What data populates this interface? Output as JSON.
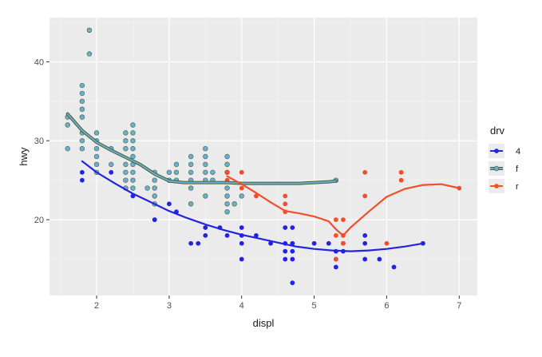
{
  "chart_data": {
    "type": "scatter",
    "xlabel": "displ",
    "ylabel": "hwy",
    "xlim": [
      1.35,
      7.25
    ],
    "ylim": [
      10.4,
      45.6
    ],
    "x_ticks": [
      2,
      3,
      4,
      5,
      6,
      7
    ],
    "y_ticks": [
      20,
      30,
      40
    ],
    "grid": true,
    "legend": {
      "title": "drv",
      "position": "right",
      "entries": [
        "4",
        "f",
        "r"
      ]
    },
    "series": [
      {
        "name": "4",
        "color": "#2323e0",
        "points": [
          [
            1.8,
            26
          ],
          [
            1.8,
            25
          ],
          [
            2.0,
            28
          ],
          [
            2.0,
            27
          ],
          [
            2.2,
            26
          ],
          [
            2.5,
            25
          ],
          [
            2.5,
            24
          ],
          [
            2.5,
            23
          ],
          [
            2.5,
            26
          ],
          [
            2.8,
            20
          ],
          [
            2.8,
            20
          ],
          [
            3.0,
            22
          ],
          [
            3.1,
            21
          ],
          [
            3.3,
            17
          ],
          [
            3.4,
            17
          ],
          [
            3.5,
            19
          ],
          [
            3.5,
            18
          ],
          [
            3.7,
            19
          ],
          [
            3.8,
            18
          ],
          [
            4.0,
            17
          ],
          [
            4.0,
            18
          ],
          [
            4.0,
            15
          ],
          [
            4.0,
            19
          ],
          [
            4.2,
            18
          ],
          [
            4.4,
            17
          ],
          [
            4.6,
            17
          ],
          [
            4.6,
            16
          ],
          [
            4.6,
            15
          ],
          [
            4.6,
            19
          ],
          [
            4.7,
            17
          ],
          [
            4.7,
            16
          ],
          [
            4.7,
            15
          ],
          [
            4.7,
            12
          ],
          [
            4.7,
            19
          ],
          [
            5.0,
            17
          ],
          [
            5.2,
            17
          ],
          [
            5.3,
            16
          ],
          [
            5.3,
            15
          ],
          [
            5.3,
            14
          ],
          [
            5.4,
            17
          ],
          [
            5.4,
            16
          ],
          [
            5.7,
            18
          ],
          [
            5.7,
            17
          ],
          [
            5.7,
            15
          ],
          [
            5.9,
            15
          ],
          [
            6.1,
            14
          ],
          [
            6.5,
            17
          ]
        ],
        "trend": [
          [
            1.8,
            27.4
          ],
          [
            2.0,
            26.0
          ],
          [
            2.25,
            24.6
          ],
          [
            2.5,
            23.3
          ],
          [
            2.75,
            22.2
          ],
          [
            3.0,
            21.1
          ],
          [
            3.25,
            20.2
          ],
          [
            3.5,
            19.4
          ],
          [
            3.75,
            18.7
          ],
          [
            4.0,
            18.1
          ],
          [
            4.25,
            17.6
          ],
          [
            4.5,
            17.1
          ],
          [
            4.75,
            16.6
          ],
          [
            5.0,
            16.3
          ],
          [
            5.25,
            16.1
          ],
          [
            5.5,
            16.0
          ],
          [
            5.75,
            16.1
          ],
          [
            6.0,
            16.3
          ],
          [
            6.25,
            16.6
          ],
          [
            6.5,
            17.0
          ]
        ]
      },
      {
        "name": "f",
        "color": "#6aaed0",
        "points": [
          [
            1.6,
            33
          ],
          [
            1.6,
            32
          ],
          [
            1.6,
            29
          ],
          [
            1.8,
            37
          ],
          [
            1.8,
            36
          ],
          [
            1.8,
            35
          ],
          [
            1.8,
            34
          ],
          [
            1.8,
            33
          ],
          [
            1.8,
            31
          ],
          [
            1.8,
            30
          ],
          [
            1.8,
            29
          ],
          [
            1.9,
            44
          ],
          [
            1.9,
            41
          ],
          [
            2.0,
            31
          ],
          [
            2.0,
            30
          ],
          [
            2.0,
            29
          ],
          [
            2.0,
            28
          ],
          [
            2.0,
            27
          ],
          [
            2.0,
            26
          ],
          [
            2.2,
            27
          ],
          [
            2.2,
            29
          ],
          [
            2.4,
            31
          ],
          [
            2.4,
            30
          ],
          [
            2.4,
            29
          ],
          [
            2.4,
            27
          ],
          [
            2.4,
            26
          ],
          [
            2.4,
            25
          ],
          [
            2.4,
            24
          ],
          [
            2.5,
            32
          ],
          [
            2.5,
            31
          ],
          [
            2.5,
            30
          ],
          [
            2.5,
            29
          ],
          [
            2.5,
            28
          ],
          [
            2.5,
            27
          ],
          [
            2.5,
            26
          ],
          [
            2.5,
            25
          ],
          [
            2.5,
            24
          ],
          [
            2.7,
            24
          ],
          [
            2.8,
            26
          ],
          [
            2.8,
            25
          ],
          [
            2.8,
            24
          ],
          [
            2.8,
            23
          ],
          [
            2.8,
            22
          ],
          [
            3.0,
            26
          ],
          [
            3.0,
            25
          ],
          [
            3.1,
            27
          ],
          [
            3.1,
            26
          ],
          [
            3.1,
            25
          ],
          [
            3.3,
            28
          ],
          [
            3.3,
            27
          ],
          [
            3.3,
            26
          ],
          [
            3.3,
            25
          ],
          [
            3.3,
            24
          ],
          [
            3.3,
            22
          ],
          [
            3.5,
            29
          ],
          [
            3.5,
            28
          ],
          [
            3.5,
            27
          ],
          [
            3.5,
            26
          ],
          [
            3.5,
            25
          ],
          [
            3.5,
            23
          ],
          [
            3.6,
            26
          ],
          [
            3.6,
            25
          ],
          [
            3.8,
            28
          ],
          [
            3.8,
            27
          ],
          [
            3.8,
            26
          ],
          [
            3.8,
            24
          ],
          [
            3.8,
            23
          ],
          [
            3.8,
            22
          ],
          [
            3.8,
            21
          ],
          [
            3.9,
            22
          ],
          [
            4.0,
            23
          ],
          [
            5.3,
            25
          ]
        ],
        "trend": [
          [
            1.6,
            33.4
          ],
          [
            1.8,
            31.3
          ],
          [
            2.0,
            29.8
          ],
          [
            2.2,
            28.8
          ],
          [
            2.4,
            27.9
          ],
          [
            2.6,
            27.0
          ],
          [
            2.8,
            25.8
          ],
          [
            3.0,
            24.9
          ],
          [
            3.2,
            24.7
          ],
          [
            3.4,
            24.7
          ],
          [
            3.6,
            24.7
          ],
          [
            3.8,
            24.7
          ],
          [
            4.0,
            24.6
          ],
          [
            4.2,
            24.6
          ],
          [
            4.4,
            24.6
          ],
          [
            4.6,
            24.6
          ],
          [
            4.8,
            24.6
          ],
          [
            5.0,
            24.7
          ],
          [
            5.2,
            24.8
          ],
          [
            5.3,
            24.9
          ]
        ]
      },
      {
        "name": "r",
        "color": "#f04f2a",
        "points": [
          [
            3.8,
            25
          ],
          [
            3.8,
            26
          ],
          [
            4.0,
            26
          ],
          [
            4.0,
            24
          ],
          [
            4.2,
            23
          ],
          [
            4.6,
            23
          ],
          [
            4.6,
            22
          ],
          [
            4.6,
            21
          ],
          [
            5.3,
            20
          ],
          [
            5.3,
            18
          ],
          [
            5.3,
            15
          ],
          [
            5.4,
            20
          ],
          [
            5.4,
            18
          ],
          [
            5.4,
            17
          ],
          [
            5.7,
            26
          ],
          [
            5.7,
            23
          ],
          [
            6.0,
            17
          ],
          [
            6.2,
            26
          ],
          [
            6.2,
            25
          ],
          [
            7.0,
            24
          ]
        ],
        "trend": [
          [
            3.8,
            25.5
          ],
          [
            4.0,
            24.5
          ],
          [
            4.2,
            23.4
          ],
          [
            4.4,
            22.2
          ],
          [
            4.6,
            21.1
          ],
          [
            4.8,
            20.8
          ],
          [
            5.0,
            20.4
          ],
          [
            5.2,
            19.8
          ],
          [
            5.3,
            18.8
          ],
          [
            5.4,
            18.0
          ],
          [
            5.5,
            19.0
          ],
          [
            5.6,
            19.8
          ],
          [
            5.75,
            21.0
          ],
          [
            6.0,
            22.9
          ],
          [
            6.25,
            23.9
          ],
          [
            6.5,
            24.4
          ],
          [
            6.75,
            24.5
          ],
          [
            7.0,
            24.0
          ]
        ]
      }
    ]
  }
}
